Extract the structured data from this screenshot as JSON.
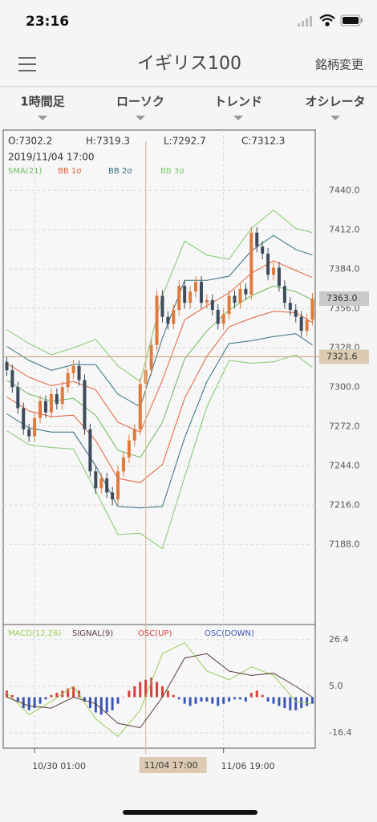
{
  "status_bar": {
    "time": "23:16"
  },
  "nav": {
    "title": "イギリス100",
    "action": "銘柄変更"
  },
  "tabs": [
    "1時間足",
    "ローソク",
    "トレンド",
    "オシレータ"
  ],
  "chart_data": [
    {
      "type": "candlestick",
      "info": {
        "open": "O:7302.2",
        "high": "H:7319.3",
        "low": "L:7292.7",
        "close": "C:7312.3",
        "date": "2019/11/04 17:00"
      },
      "categories": [
        null,
        null,
        null,
        null,
        null,
        "10/30 01:00",
        null,
        null,
        null,
        null,
        null,
        null,
        null,
        null,
        null,
        null,
        null,
        null,
        null,
        null,
        null,
        null,
        null,
        null,
        null,
        "11/04 17:00",
        null,
        null,
        null,
        null,
        null,
        null,
        null,
        null,
        null,
        null,
        null,
        null,
        null,
        "11/06 19:00",
        null,
        null,
        null,
        null,
        null,
        null,
        null,
        null,
        null,
        null,
        null,
        null,
        null,
        null,
        null,
        null
      ],
      "open": [
        7318,
        7312,
        7300,
        7285,
        7270,
        7265,
        7278,
        7290,
        7282,
        7295,
        7288,
        7300,
        7310,
        7315,
        7305,
        7270,
        7240,
        7228,
        7235,
        7225,
        7220,
        7240,
        7250,
        7262,
        7270,
        7302.2,
        7312.3,
        7330,
        7365,
        7350,
        7345,
        7355,
        7372,
        7360,
        7368,
        7375,
        7360,
        7362,
        7355,
        7345,
        7352,
        7365,
        7360,
        7370,
        7366,
        7410,
        7400,
        7395,
        7380,
        7385,
        7372,
        7360,
        7355,
        7350,
        7340,
        7348
      ],
      "high": [
        7322,
        7316,
        7304,
        7289,
        7274,
        7282,
        7294,
        7294,
        7299,
        7299,
        7304,
        7314,
        7319,
        7319,
        7309,
        7274,
        7244,
        7239,
        7239,
        7229,
        7244,
        7254,
        7266,
        7274,
        7306.2,
        7319.3,
        7334,
        7369,
        7369,
        7354,
        7359,
        7376,
        7376,
        7372,
        7379,
        7379,
        7366,
        7366,
        7359,
        7356,
        7369,
        7369,
        7374,
        7374,
        7414,
        7414,
        7404,
        7399,
        7389,
        7389,
        7376,
        7364,
        7359,
        7354,
        7352,
        7367
      ],
      "low": [
        7308,
        7296,
        7281,
        7266,
        7261,
        7261,
        7274,
        7278,
        7278,
        7284,
        7284,
        7296,
        7306,
        7301,
        7266,
        7236,
        7224,
        7224,
        7221,
        7216,
        7216,
        7236,
        7246,
        7258,
        7266,
        7292.7,
        7308.3,
        7326,
        7346,
        7341,
        7341,
        7351,
        7356,
        7356,
        7364,
        7356,
        7356,
        7351,
        7341,
        7341,
        7348,
        7356,
        7356,
        7362,
        7362,
        7396,
        7391,
        7376,
        7376,
        7368,
        7356,
        7351,
        7346,
        7336,
        7336,
        7344
      ],
      "close": [
        7312,
        7300,
        7285,
        7270,
        7265,
        7278,
        7290,
        7282,
        7295,
        7288,
        7300,
        7310,
        7315,
        7305,
        7270,
        7240,
        7228,
        7235,
        7225,
        7220,
        7240,
        7250,
        7262,
        7270,
        7302.2,
        7312.3,
        7330,
        7365,
        7350,
        7345,
        7355,
        7372,
        7360,
        7368,
        7375,
        7360,
        7362,
        7355,
        7345,
        7352,
        7365,
        7360,
        7370,
        7366,
        7410,
        7400,
        7395,
        7380,
        7385,
        7372,
        7360,
        7355,
        7350,
        7340,
        7348,
        7363
      ],
      "up_color": "#e07a3c",
      "down_color": "#3d4b5c",
      "ylim": [
        7131,
        7483
      ],
      "yticks": [
        {
          "value": 7440,
          "label": "7440.0"
        },
        {
          "value": 7412,
          "label": "7412.0"
        },
        {
          "value": 7384,
          "label": "7384.0"
        },
        {
          "value": 7356,
          "label": "7356.0"
        },
        {
          "value": 7328,
          "label": "7328.0"
        },
        {
          "value": 7300,
          "label": "7300.0"
        },
        {
          "value": 7272,
          "label": "7272.0"
        },
        {
          "value": 7244,
          "label": "7244.0"
        },
        {
          "value": 7216,
          "label": "7216.0"
        },
        {
          "value": 7188,
          "label": "7188.0"
        }
      ],
      "grid": true,
      "last_price": {
        "value": 7363,
        "label": "7363.0"
      },
      "crosshair": {
        "index": 25,
        "price": 7321.6
      },
      "overlays": {
        "x": [
          0,
          4,
          8,
          12,
          16,
          20,
          24,
          28,
          32,
          36,
          40,
          44,
          48,
          52,
          55
        ],
        "series": [
          {
            "name": "SMA(21)",
            "color": "#6cb85a",
            "values": [
              7305,
              7295,
              7290,
              7292,
              7280,
              7255,
              7250,
              7275,
              7320,
              7340,
              7355,
              7365,
              7372,
              7368,
              7362
            ]
          },
          {
            "name": "BB 1σ",
            "color": "#e0603a",
            "upper": [
              7317,
              7307,
              7301,
              7304,
              7298,
              7275,
              7268,
              7305,
              7348,
              7358,
              7367,
              7381,
              7390,
              7383,
              7378
            ],
            "lower": [
              7293,
              7283,
              7279,
              7280,
              7262,
              7235,
              7232,
              7245,
              7292,
              7322,
              7343,
              7349,
              7354,
              7353,
              7346
            ]
          },
          {
            "name": "BB 2σ",
            "color": "#2f6f7f",
            "upper": [
              7329,
              7319,
              7312,
              7316,
              7316,
              7295,
              7286,
              7335,
              7376,
              7376,
              7379,
              7397,
              7408,
              7398,
              7394
            ],
            "lower": [
              7281,
              7271,
              7268,
              7268,
              7244,
              7215,
              7214,
              7215,
              7264,
              7304,
              7331,
              7333,
              7336,
              7338,
              7330
            ]
          },
          {
            "name": "BB 3σ",
            "color": "#7ec86a",
            "upper": [
              7341,
              7331,
              7323,
              7328,
              7334,
              7315,
              7304,
              7365,
              7404,
              7394,
              7391,
              7413,
              7426,
              7413,
              7410
            ],
            "lower": [
              7269,
              7259,
              7257,
              7256,
              7226,
              7195,
              7196,
              7185,
              7236,
              7286,
              7319,
              7317,
              7318,
              7323,
              7314
            ]
          }
        ]
      }
    },
    {
      "type": "macd",
      "x": [
        0,
        4,
        8,
        12,
        16,
        20,
        24,
        28,
        32,
        36,
        40,
        44,
        48,
        52,
        55
      ],
      "series": [
        {
          "name": "MACD(12,26)",
          "color": "#9ccc5a",
          "values": [
            2,
            -8,
            -2,
            5,
            -10,
            -18,
            -6,
            20,
            25,
            12,
            8,
            14,
            10,
            -2,
            -3
          ]
        },
        {
          "name": "SIGNAL(9)",
          "color": "#5a3a3a",
          "values": [
            0,
            -4,
            -5,
            0,
            -3,
            -12,
            -14,
            0,
            18,
            20,
            12,
            10,
            11,
            5,
            0
          ]
        }
      ],
      "osc": {
        "up_name": "OSC(UP)",
        "up_color": "#d8403a",
        "down_name": "OSC(DOWN)",
        "down_color": "#3a55b8",
        "values": [
          3,
          1,
          -2,
          -5,
          -6,
          -5,
          -3,
          -1,
          1,
          2,
          3,
          4,
          5,
          3,
          -2,
          -5,
          -7,
          -8,
          -7,
          -6,
          -3,
          0,
          3,
          5,
          7,
          8,
          9,
          7,
          5,
          3,
          1,
          -1,
          -3,
          -4,
          -3,
          -2,
          -2,
          -3,
          -4,
          -3,
          -2,
          -1,
          -1,
          -2,
          2,
          3,
          1,
          -2,
          -3,
          -4,
          -5,
          -6,
          -6,
          -5,
          -4,
          -3
        ]
      },
      "ylim": [
        -23.4,
        33
      ],
      "yticks": [
        26.4,
        {
          "value": 5,
          "label": "5.0"
        },
        -16.4
      ],
      "grid": true
    }
  ]
}
